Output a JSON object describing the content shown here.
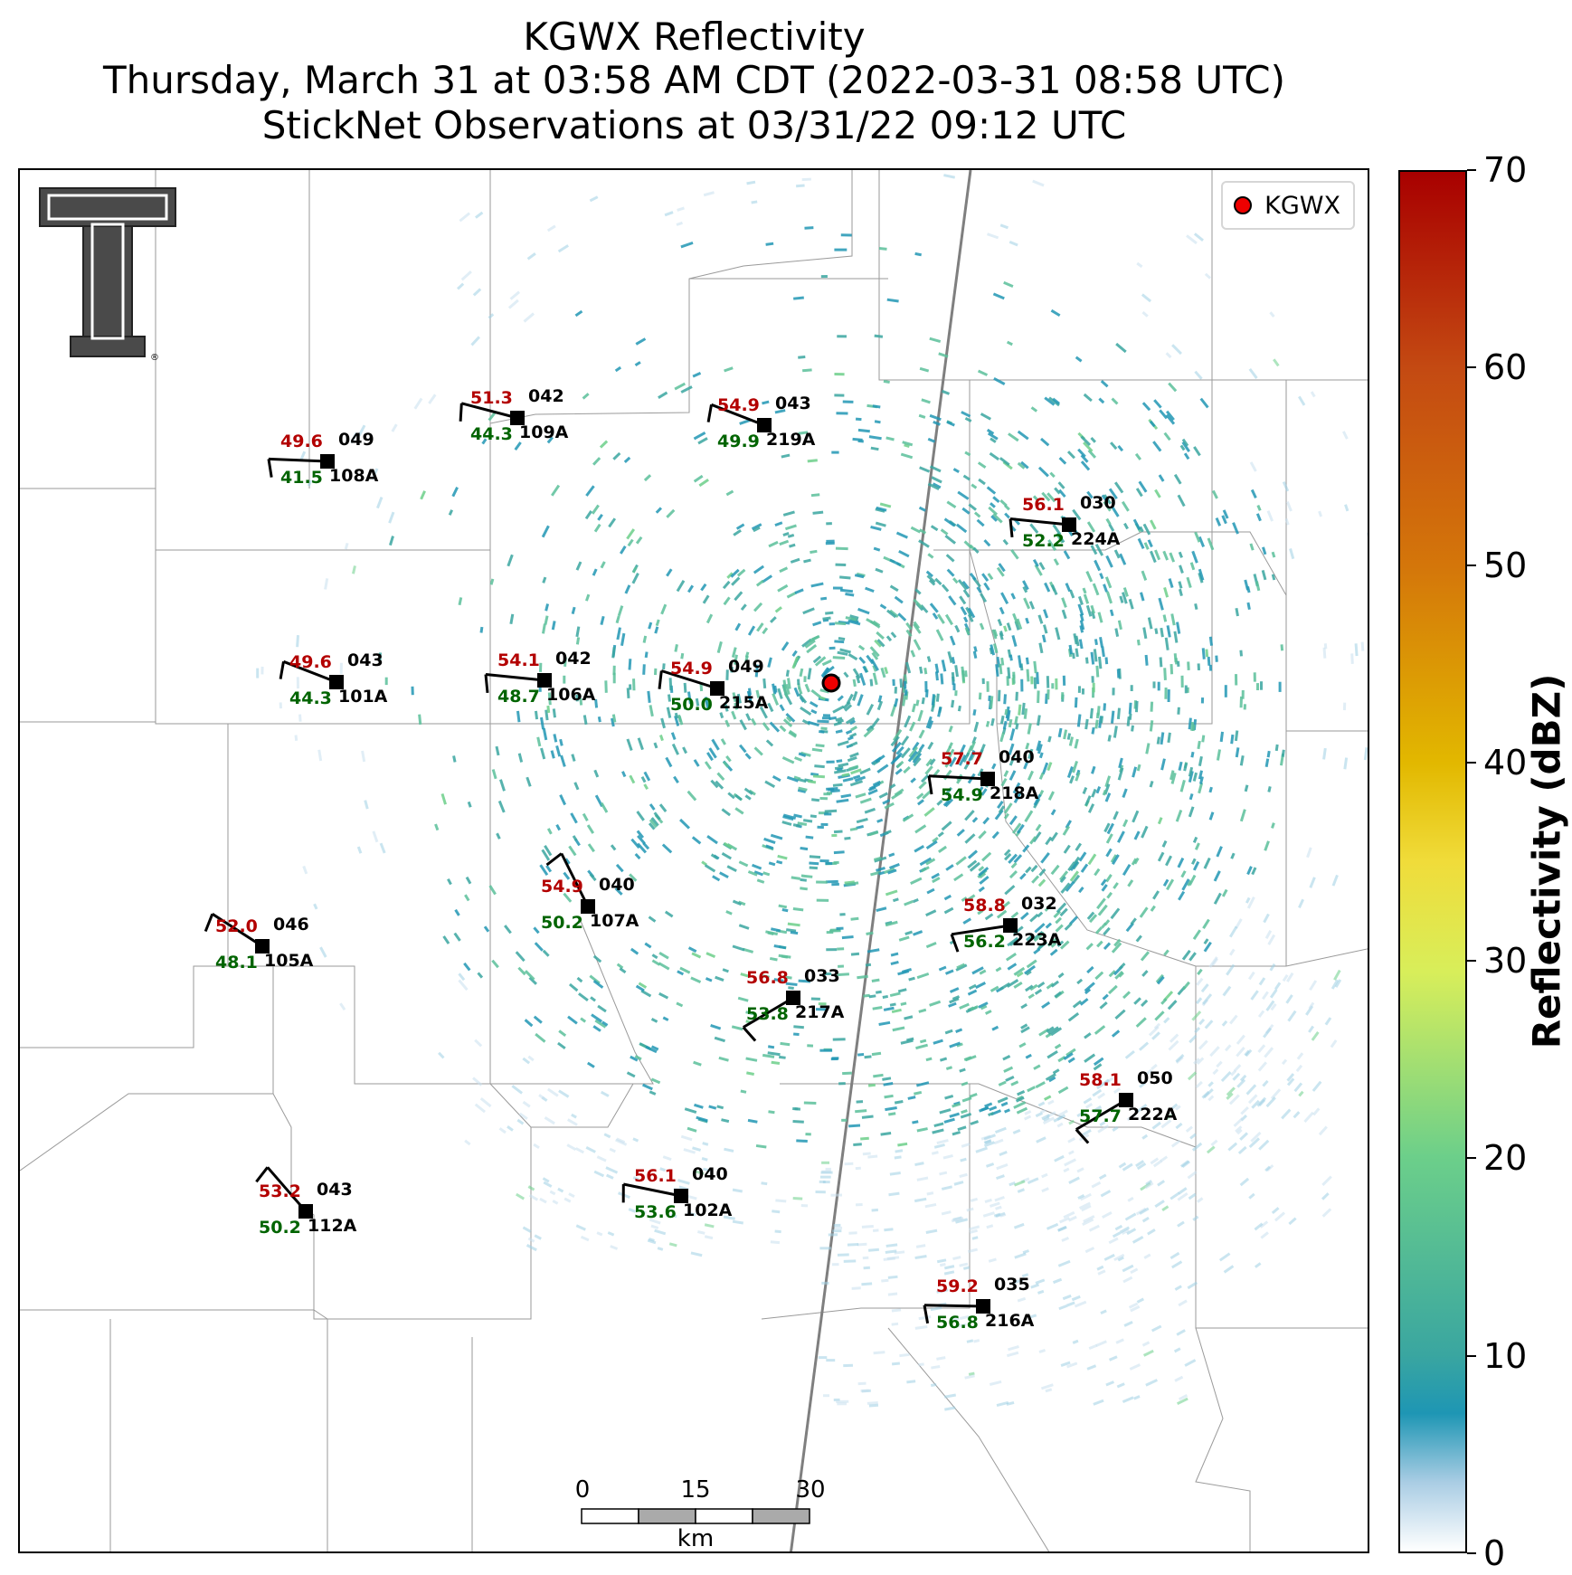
{
  "title": {
    "line1": "KGWX Reflectivity",
    "line2": "Thursday, March 31 at 03:58 AM CDT (2022-03-31 08:58 UTC)",
    "line3": "StickNet Observations at 03/31/22 09:12 UTC"
  },
  "legend": {
    "label": "KGWX",
    "marker_color": "#ee0000"
  },
  "colorbar": {
    "title": "Reflectivity (dBZ)",
    "ticks": [
      "0",
      "10",
      "20",
      "30",
      "40",
      "50",
      "60",
      "70"
    ],
    "range": [
      0,
      70
    ]
  },
  "scalebar": {
    "ticks": [
      "0",
      "15",
      "30"
    ],
    "unit": "km"
  },
  "stations": [
    {
      "id": "108A",
      "t": "49.6",
      "td": "41.5",
      "p": "049"
    },
    {
      "id": "109A",
      "t": "51.3",
      "td": "44.3",
      "p": "042"
    },
    {
      "id": "219A",
      "t": "54.9",
      "td": "49.9",
      "p": "043"
    },
    {
      "id": "224A",
      "t": "56.1",
      "td": "52.2",
      "p": "030"
    },
    {
      "id": "101A",
      "t": "49.6",
      "td": "44.3",
      "p": "043"
    },
    {
      "id": "106A",
      "t": "54.1",
      "td": "48.7",
      "p": "042"
    },
    {
      "id": "215A",
      "t": "54.9",
      "td": "50.0",
      "p": "049"
    },
    {
      "id": "218A",
      "t": "57.7",
      "td": "54.9",
      "p": "040"
    },
    {
      "id": "107A",
      "t": "54.9",
      "td": "50.2",
      "p": "040"
    },
    {
      "id": "105A",
      "t": "52.0",
      "td": "48.1",
      "p": "046"
    },
    {
      "id": "223A",
      "t": "58.8",
      "td": "56.2",
      "p": "032"
    },
    {
      "id": "217A",
      "t": "56.8",
      "td": "53.8",
      "p": "033"
    },
    {
      "id": "222A",
      "t": "58.1",
      "td": "57.7",
      "p": "050"
    },
    {
      "id": "112A",
      "t": "53.2",
      "td": "50.2",
      "p": "043"
    },
    {
      "id": "102A",
      "t": "56.1",
      "td": "53.6",
      "p": "040"
    },
    {
      "id": "216A",
      "t": "59.2",
      "td": "56.8",
      "p": "035"
    }
  ],
  "colors": {
    "temperature": "#b30000",
    "dewpoint": "#006400",
    "radar_site": "#ee0000"
  }
}
